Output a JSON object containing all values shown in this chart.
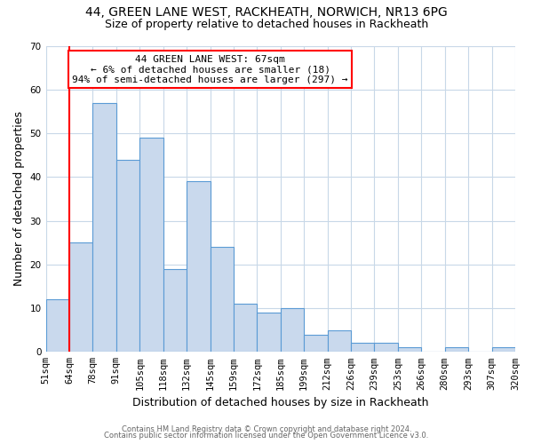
{
  "title1": "44, GREEN LANE WEST, RACKHEATH, NORWICH, NR13 6PG",
  "title2": "Size of property relative to detached houses in Rackheath",
  "xlabel": "Distribution of detached houses by size in Rackheath",
  "ylabel": "Number of detached properties",
  "footnote1": "Contains HM Land Registry data © Crown copyright and database right 2024.",
  "footnote2": "Contains public sector information licensed under the Open Government Licence v3.0.",
  "bin_labels": [
    "51sqm",
    "64sqm",
    "78sqm",
    "91sqm",
    "105sqm",
    "118sqm",
    "132sqm",
    "145sqm",
    "159sqm",
    "172sqm",
    "185sqm",
    "199sqm",
    "212sqm",
    "226sqm",
    "239sqm",
    "253sqm",
    "266sqm",
    "280sqm",
    "293sqm",
    "307sqm",
    "320sqm"
  ],
  "bar_values": [
    12,
    25,
    57,
    44,
    49,
    19,
    39,
    24,
    11,
    9,
    10,
    4,
    5,
    2,
    2,
    1,
    0,
    1,
    0,
    1
  ],
  "bar_color": "#c9d9ed",
  "bar_edge_color": "#5b9bd5",
  "highlight_color": "red",
  "annotation_text": "44 GREEN LANE WEST: 67sqm\n← 6% of detached houses are smaller (18)\n94% of semi-detached houses are larger (297) →",
  "ylim": [
    0,
    70
  ],
  "yticks": [
    0,
    10,
    20,
    30,
    40,
    50,
    60,
    70
  ],
  "grid_color": "#c8d8e8",
  "background_color": "#ffffff",
  "title_fontsize": 10,
  "title2_fontsize": 9,
  "axis_label_fontsize": 9,
  "tick_fontsize": 7.5,
  "annot_fontsize": 8,
  "footnote_fontsize": 6
}
